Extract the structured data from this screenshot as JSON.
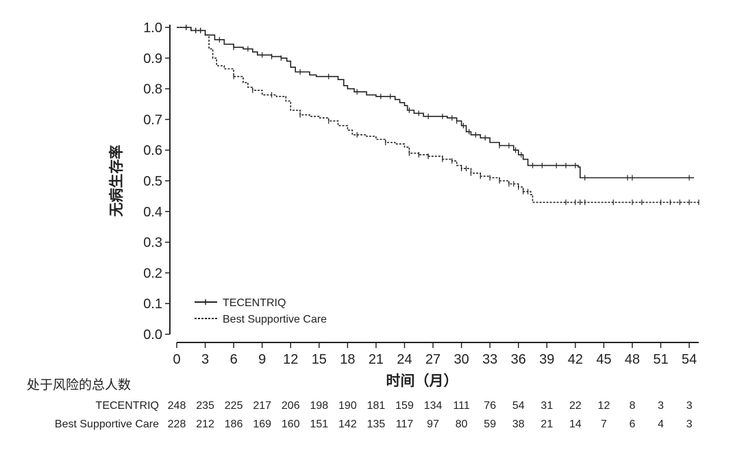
{
  "chart_data": {
    "type": "line",
    "xlabel": "时间（月）",
    "ylabel": "无病生存率",
    "xlim": [
      0,
      55
    ],
    "ylim": [
      0,
      1
    ],
    "x_ticks": [
      "0",
      "3",
      "6",
      "9",
      "12",
      "15",
      "18",
      "21",
      "24",
      "27",
      "30",
      "33",
      "36",
      "39",
      "42",
      "45",
      "48",
      "51",
      "54"
    ],
    "y_ticks": [
      "0.0",
      "0.1",
      "0.2",
      "0.3",
      "0.4",
      "0.5",
      "0.6",
      "0.7",
      "0.8",
      "0.9",
      "1.0"
    ],
    "legend_position": "bottom-left",
    "series": [
      {
        "name": "TECENTRIQ",
        "line_style": "solid",
        "points": [
          [
            0,
            1.0
          ],
          [
            1.5,
            0.99
          ],
          [
            3,
            0.975
          ],
          [
            4,
            0.96
          ],
          [
            5,
            0.945
          ],
          [
            6,
            0.935
          ],
          [
            7,
            0.93
          ],
          [
            8,
            0.92
          ],
          [
            8.5,
            0.91
          ],
          [
            10,
            0.905
          ],
          [
            11,
            0.9
          ],
          [
            11.6,
            0.89
          ],
          [
            12,
            0.87
          ],
          [
            12.5,
            0.855
          ],
          [
            14,
            0.845
          ],
          [
            14.7,
            0.84
          ],
          [
            17,
            0.83
          ],
          [
            17.6,
            0.81
          ],
          [
            18,
            0.8
          ],
          [
            18.7,
            0.79
          ],
          [
            20,
            0.78
          ],
          [
            21,
            0.775
          ],
          [
            23,
            0.765
          ],
          [
            23.5,
            0.755
          ],
          [
            24,
            0.745
          ],
          [
            24.3,
            0.73
          ],
          [
            25,
            0.72
          ],
          [
            26,
            0.71
          ],
          [
            28.5,
            0.705
          ],
          [
            29.5,
            0.695
          ],
          [
            30,
            0.68
          ],
          [
            30.5,
            0.66
          ],
          [
            31,
            0.65
          ],
          [
            32,
            0.64
          ],
          [
            33,
            0.625
          ],
          [
            34,
            0.615
          ],
          [
            35.5,
            0.6
          ],
          [
            36,
            0.585
          ],
          [
            36.5,
            0.57
          ],
          [
            37,
            0.55
          ],
          [
            42.3,
            0.545
          ],
          [
            42.5,
            0.51
          ],
          [
            54.5,
            0.51
          ]
        ],
        "censor_x": [
          1,
          2,
          2.5,
          4.5,
          6,
          7.5,
          9,
          10,
          11,
          13,
          16,
          19,
          21.5,
          22.5,
          24.5,
          25.5,
          26.5,
          28,
          29,
          29.5,
          30.2,
          30.8,
          31.5,
          32.5,
          34,
          35,
          35.7,
          36.3,
          37.5,
          38.5,
          40,
          41,
          42,
          43,
          47.5,
          48,
          54
        ]
      },
      {
        "name": "Best Supportive Care",
        "line_style": "dashed",
        "points": [
          [
            0,
            1.0
          ],
          [
            1.5,
            0.99
          ],
          [
            3,
            0.975
          ],
          [
            3.4,
            0.93
          ],
          [
            3.8,
            0.9
          ],
          [
            4.2,
            0.875
          ],
          [
            5,
            0.865
          ],
          [
            6,
            0.84
          ],
          [
            7,
            0.82
          ],
          [
            7.5,
            0.805
          ],
          [
            8,
            0.795
          ],
          [
            9,
            0.78
          ],
          [
            10.5,
            0.775
          ],
          [
            11.5,
            0.76
          ],
          [
            12,
            0.73
          ],
          [
            13,
            0.715
          ],
          [
            14,
            0.71
          ],
          [
            15,
            0.705
          ],
          [
            16,
            0.695
          ],
          [
            17,
            0.68
          ],
          [
            18,
            0.665
          ],
          [
            18.5,
            0.65
          ],
          [
            20,
            0.645
          ],
          [
            21,
            0.635
          ],
          [
            22,
            0.625
          ],
          [
            23,
            0.62
          ],
          [
            24,
            0.61
          ],
          [
            24.5,
            0.59
          ],
          [
            25.5,
            0.585
          ],
          [
            26.5,
            0.58
          ],
          [
            28,
            0.57
          ],
          [
            29,
            0.565
          ],
          [
            29.5,
            0.55
          ],
          [
            30,
            0.54
          ],
          [
            31,
            0.525
          ],
          [
            32,
            0.515
          ],
          [
            33,
            0.51
          ],
          [
            34,
            0.5
          ],
          [
            35,
            0.49
          ],
          [
            36,
            0.48
          ],
          [
            36.5,
            0.465
          ],
          [
            37.3,
            0.455
          ],
          [
            37.5,
            0.43
          ],
          [
            55,
            0.43
          ]
        ],
        "censor_x": [
          1,
          2,
          2.5,
          6,
          8,
          10,
          13,
          16,
          19,
          22,
          24.5,
          25.5,
          26.5,
          28,
          29,
          30,
          30.5,
          31,
          32,
          33,
          34,
          35,
          35.5,
          36,
          36.5,
          37,
          41,
          42,
          42.5,
          43,
          46,
          48,
          49,
          51,
          52,
          53,
          54,
          55
        ]
      }
    ],
    "risk_table": {
      "header": "处于风险的总人数",
      "rows": [
        {
          "label": "TECENTRIQ",
          "values": [
            "248",
            "235",
            "225",
            "217",
            "206",
            "198",
            "190",
            "181",
            "159",
            "134",
            "111",
            "76",
            "54",
            "31",
            "22",
            "12",
            "8",
            "3",
            "3"
          ]
        },
        {
          "label": "Best Supportive Care",
          "values": [
            "228",
            "212",
            "186",
            "169",
            "160",
            "151",
            "142",
            "135",
            "117",
            "97",
            "80",
            "59",
            "38",
            "21",
            "14",
            "7",
            "6",
            "4",
            "3"
          ]
        }
      ]
    }
  }
}
